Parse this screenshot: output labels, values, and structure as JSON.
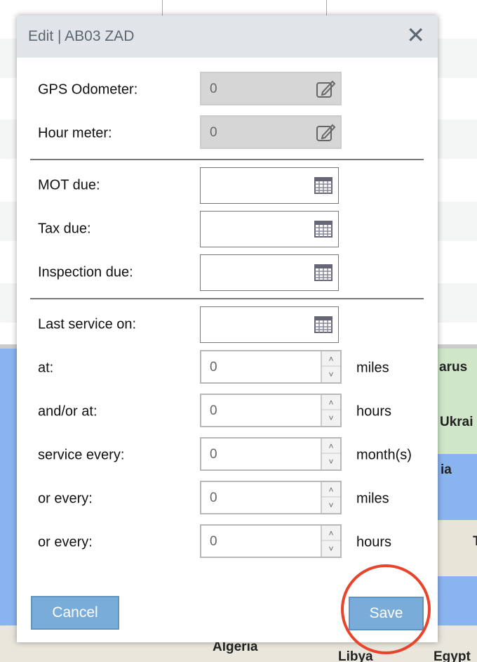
{
  "dialog": {
    "title": "Edit | AB03 ZAD",
    "close_icon": "close-icon"
  },
  "meters": [
    {
      "label": "GPS Odometer:",
      "value": "0"
    },
    {
      "label": "Hour meter:",
      "value": "0"
    }
  ],
  "dates": [
    {
      "label": "MOT due:",
      "value": ""
    },
    {
      "label": "Tax due:",
      "value": ""
    },
    {
      "label": "Inspection due:",
      "value": ""
    }
  ],
  "last_service": {
    "label": "Last service on:",
    "value": ""
  },
  "service_fields": [
    {
      "label": "at:",
      "value": "0",
      "unit": "miles"
    },
    {
      "label": "and/or at:",
      "value": "0",
      "unit": "hours"
    },
    {
      "label": "service every:",
      "value": "0",
      "unit": "month(s)"
    },
    {
      "label": "or every:",
      "value": "0",
      "unit": "miles"
    },
    {
      "label": "or every:",
      "value": "0",
      "unit": "hours"
    }
  ],
  "buttons": {
    "cancel": "Cancel",
    "save": "Save"
  },
  "highlight_color": "#e8442c",
  "map_labels": {
    "a": "arus",
    "b": "Ukrai",
    "c": "ia",
    "d": "T",
    "e": "Algeria",
    "f": "Libya",
    "g": "Egypt"
  }
}
